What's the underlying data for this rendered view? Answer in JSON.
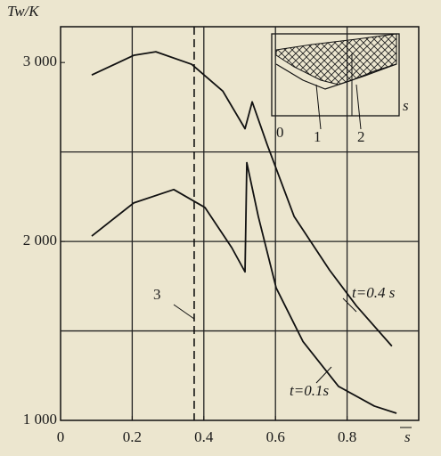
{
  "chart_data": {
    "type": "line",
    "ylabel": "Tw/K",
    "xlabel": "s",
    "xlim": [
      0,
      1.0
    ],
    "ylim": [
      1000,
      3200
    ],
    "xticks": [
      0,
      0.2,
      0.4,
      0.6,
      0.8
    ],
    "yticks": [
      {
        "value": 1000,
        "label": "1 000"
      },
      {
        "value": 2000,
        "label": "2 000"
      },
      {
        "value": 3000,
        "label": "3 000"
      }
    ],
    "grid": true,
    "grid_x": [
      0.2,
      0.4,
      0.6,
      0.8
    ],
    "grid_y": [
      1500,
      2000,
      2500
    ],
    "series": [
      {
        "name": "t=0.4 s",
        "color": "#111111",
        "x": [
          0.087,
          0.204,
          0.266,
          0.366,
          0.453,
          0.515,
          0.535,
          0.577,
          0.652,
          0.751,
          0.826,
          0.925
        ],
        "values": [
          2930,
          3040,
          3060,
          2990,
          2840,
          2630,
          2780,
          2540,
          2140,
          1840,
          1640,
          1415
        ]
      },
      {
        "name": "t=0.1s",
        "color": "#111111",
        "x": [
          0.087,
          0.204,
          0.316,
          0.403,
          0.478,
          0.515,
          0.52,
          0.552,
          0.602,
          0.677,
          0.776,
          0.876,
          0.938
        ],
        "values": [
          2030,
          2215,
          2290,
          2190,
          1965,
          1830,
          2440,
          2140,
          1740,
          1440,
          1190,
          1080,
          1040
        ]
      }
    ],
    "marker_line": {
      "x": 0.373,
      "label": "3"
    },
    "inset_labels": [
      "0",
      "1",
      "2",
      "s"
    ]
  }
}
